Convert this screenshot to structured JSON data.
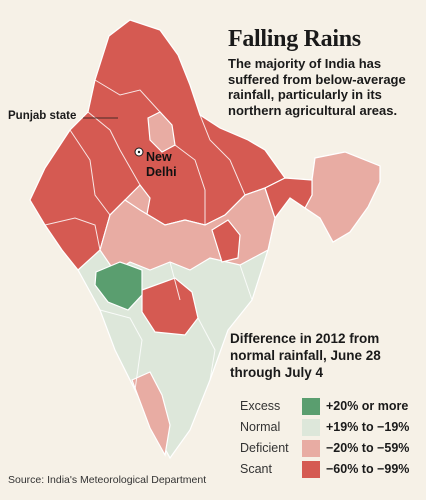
{
  "header": {
    "title": "Falling Rains",
    "subtitle": "The majority of India has suffered from below-average rainfall, particularly in its northern agricultural areas."
  },
  "labels": {
    "punjab": "Punjab state",
    "city_line1": "New",
    "city_line2": "Delhi"
  },
  "legend": {
    "title": "Difference in 2012 from normal rainfall, June 28 through July 4",
    "items": [
      {
        "category": "Excess",
        "range": "+20% or more",
        "color": "#5a9e6f"
      },
      {
        "category": "Normal",
        "range": "+19% to −19%",
        "color": "#dde7da"
      },
      {
        "category": "Deficient",
        "range": "−20% to −59%",
        "color": "#e8aca3"
      },
      {
        "category": "Scant",
        "range": "−60% to −99%",
        "color": "#d55a52"
      }
    ]
  },
  "source": "Source: India's Meteorological Department"
}
